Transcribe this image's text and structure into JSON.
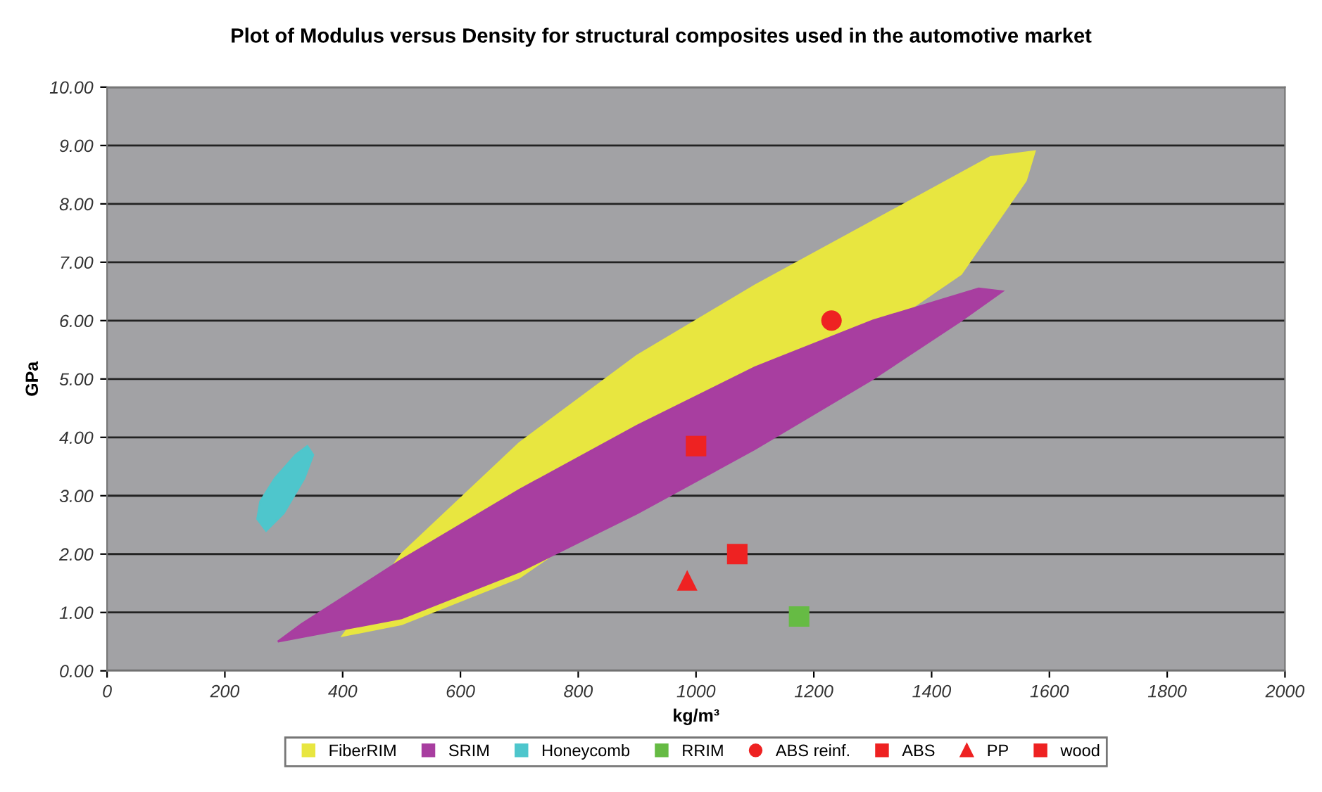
{
  "chart_data": {
    "type": "scatter",
    "title": "Plot of Modulus versus Density for structural composites used in the automotive market",
    "xlabel": "kg/m³",
    "ylabel": "GPa",
    "xlim": [
      0,
      2000
    ],
    "xticks": [
      0,
      200,
      400,
      600,
      800,
      1000,
      1200,
      1400,
      1600,
      1800,
      2000
    ],
    "ylim": [
      0,
      10
    ],
    "yticks": [
      {
        "value": 0,
        "label": "0.00"
      },
      {
        "value": 1,
        "label": "1.00"
      },
      {
        "value": 2,
        "label": "2.00"
      },
      {
        "value": 3,
        "label": "3.00"
      },
      {
        "value": 4,
        "label": "4.00"
      },
      {
        "value": 5,
        "label": "5.00"
      },
      {
        "value": 6,
        "label": "6.00"
      },
      {
        "value": 7,
        "label": "7.00"
      },
      {
        "value": 8,
        "label": "8.00"
      },
      {
        "value": 9,
        "label": "9.00"
      },
      {
        "value": 10,
        "label": "10.00"
      }
    ],
    "grid": "y",
    "legend": "bottom",
    "series": [
      {
        "name": "FiberRIM",
        "type": "area",
        "color": "#e8e640",
        "x": [
          400,
          500,
          700,
          1450,
          1560,
          1575,
          1500,
          1300,
          1100,
          900,
          700,
          500
        ],
        "values": [
          0.6,
          0.8,
          1.6,
          6.8,
          8.4,
          8.9,
          8.8,
          7.7,
          6.6,
          5.4,
          3.9,
          2.0
        ]
      },
      {
        "name": "SRIM",
        "type": "area",
        "color": "#a83ea0",
        "x": [
          290,
          500,
          700,
          900,
          1100,
          1300,
          1450,
          1520,
          1480,
          1300,
          1100,
          900,
          700,
          500,
          330
        ],
        "values": [
          0.5,
          0.9,
          1.7,
          2.7,
          3.8,
          5.0,
          6.0,
          6.5,
          6.55,
          6.0,
          5.2,
          4.2,
          3.1,
          1.9,
          0.8
        ]
      },
      {
        "name": "Honeycomb",
        "type": "area",
        "color": "#4ec6cc",
        "x": [
          255,
          270,
          300,
          335,
          350,
          340,
          320,
          285,
          260
        ],
        "values": [
          2.6,
          2.4,
          2.7,
          3.3,
          3.7,
          3.85,
          3.7,
          3.3,
          2.9
        ]
      },
      {
        "name": "RRIM",
        "marker": "square",
        "color": "#66bb44",
        "x": [
          1175
        ],
        "values": [
          0.93
        ]
      },
      {
        "name": "ABS reinf.",
        "marker": "circle",
        "color": "#ee2222",
        "x": [
          1230
        ],
        "values": [
          6.0
        ]
      },
      {
        "name": "ABS",
        "marker": "square",
        "color": "#ee2222",
        "x": [
          1070
        ],
        "values": [
          2.0
        ]
      },
      {
        "name": "PP",
        "marker": "triangle",
        "color": "#ee2222",
        "x": [
          985
        ],
        "values": [
          1.55
        ]
      },
      {
        "name": "wood",
        "marker": "square",
        "color": "#ee2222",
        "x": [
          1000
        ],
        "values": [
          3.85
        ]
      }
    ]
  }
}
